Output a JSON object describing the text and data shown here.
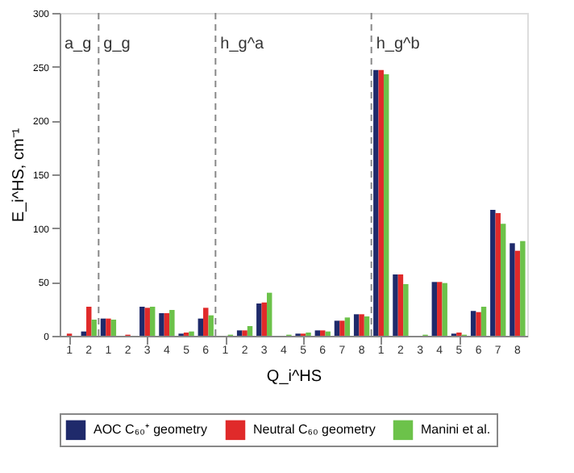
{
  "chart_data": {
    "type": "bar",
    "xlabel": "Q_i^HS",
    "ylabel": "E_i^HS, cm⁻¹",
    "categories": [
      "1",
      "2",
      "1",
      "2",
      "3",
      "4",
      "5",
      "6",
      "1",
      "2",
      "3",
      "4",
      "5",
      "6",
      "7",
      "8",
      "1",
      "2",
      "3",
      "4",
      "5",
      "6",
      "7",
      "8"
    ],
    "ylim": [
      0,
      300
    ],
    "yticks": [
      0,
      50,
      100,
      150,
      200,
      250,
      300
    ],
    "series": [
      {
        "name": "AOC C₆₀⁺ geometry",
        "color": "#1f2a6b",
        "values": [
          0,
          4,
          16,
          0,
          27,
          21,
          2,
          16,
          0,
          5,
          30,
          0,
          2,
          5,
          14,
          20,
          247,
          57,
          0,
          50,
          2,
          23,
          117,
          86
        ]
      },
      {
        "name": "Neutral C₆₀ geometry",
        "color": "#e02a2a",
        "values": [
          2,
          27,
          16,
          1,
          26,
          21,
          3,
          26,
          0,
          5,
          31,
          0,
          2,
          5,
          14,
          20,
          247,
          57,
          0,
          50,
          3,
          22,
          114,
          79
        ]
      },
      {
        "name": "Manini et al.",
        "color": "#6cc24a",
        "values": [
          0,
          15,
          15,
          0,
          27,
          24,
          4,
          19,
          1,
          9,
          40,
          1,
          3,
          4,
          17,
          18,
          243,
          48,
          1,
          49,
          1,
          27,
          104,
          88
        ]
      }
    ],
    "annotations": [
      "a_g",
      "g_g",
      "h_g^a",
      "h_g^b"
    ],
    "legend": "bottom",
    "grid": false
  }
}
